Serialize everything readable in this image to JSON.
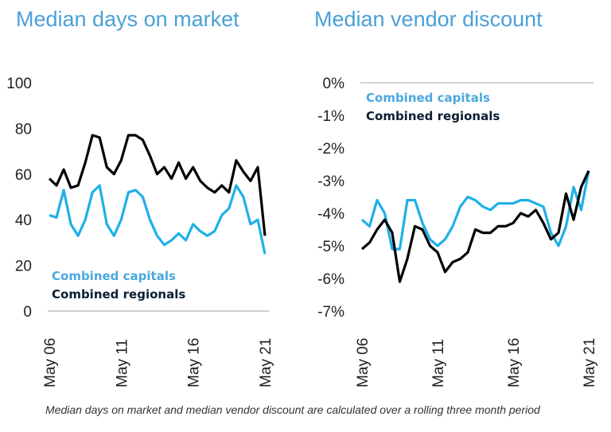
{
  "chart_data": [
    {
      "type": "line",
      "title": "Median days on market",
      "x": [
        "May 06",
        "Nov 06",
        "May 07",
        "Nov 07",
        "May 08",
        "Nov 08",
        "May 09",
        "Nov 09",
        "May 10",
        "Nov 10",
        "May 11",
        "Nov 11",
        "May 12",
        "Nov 12",
        "May 13",
        "Nov 13",
        "May 14",
        "Nov 14",
        "May 15",
        "Nov 15",
        "May 16",
        "Nov 16",
        "May 17",
        "Nov 17",
        "May 18",
        "Nov 18",
        "May 19",
        "Nov 19",
        "May 20",
        "Nov 20",
        "May 21"
      ],
      "xticks": [
        "May 06",
        "May 11",
        "May 16",
        "May 21"
      ],
      "yticks": [
        "0",
        "20",
        "40",
        "60",
        "80",
        "100"
      ],
      "ylim": [
        0,
        100
      ],
      "grid": false,
      "legend_placement": "bottom-left",
      "series": [
        {
          "name": "Combined capitals",
          "color": "#1fb0e8",
          "values": [
            42,
            41,
            53,
            38,
            33,
            40,
            52,
            55,
            38,
            33,
            40,
            52,
            53,
            50,
            40,
            33,
            29,
            31,
            34,
            31,
            38,
            35,
            33,
            35,
            42,
            45,
            55,
            50,
            38,
            40,
            25
          ]
        },
        {
          "name": "Combined regionals",
          "color": "#000000",
          "values": [
            58,
            55,
            62,
            54,
            55,
            65,
            77,
            76,
            63,
            60,
            66,
            77,
            77,
            75,
            68,
            60,
            63,
            58,
            65,
            58,
            63,
            57,
            54,
            52,
            55,
            52,
            66,
            61,
            57,
            63,
            33
          ]
        }
      ]
    },
    {
      "type": "line",
      "title": "Median vendor discount",
      "x": [
        "May 06",
        "Nov 06",
        "May 07",
        "Nov 07",
        "May 08",
        "Nov 08",
        "May 09",
        "Nov 09",
        "May 10",
        "Nov 10",
        "May 11",
        "Nov 11",
        "May 12",
        "Nov 12",
        "May 13",
        "Nov 13",
        "May 14",
        "Nov 14",
        "May 15",
        "Nov 15",
        "May 16",
        "Nov 16",
        "May 17",
        "Nov 17",
        "May 18",
        "Nov 18",
        "May 19",
        "Nov 19",
        "May 20",
        "Nov 20",
        "May 21"
      ],
      "xticks": [
        "May 06",
        "May 11",
        "May 16",
        "May 21"
      ],
      "yticks": [
        "0%",
        "-1%",
        "-2%",
        "-3%",
        "-4%",
        "-5%",
        "-6%",
        "-7%"
      ],
      "ylim": [
        -7,
        0
      ],
      "grid": false,
      "legend_placement": "top-left",
      "series": [
        {
          "name": "Combined capitals",
          "color": "#1fb0e8",
          "values": [
            -4.2,
            -4.4,
            -3.6,
            -4.0,
            -5.1,
            -5.1,
            -3.6,
            -3.6,
            -4.3,
            -4.8,
            -5.0,
            -4.8,
            -4.4,
            -3.8,
            -3.5,
            -3.6,
            -3.8,
            -3.9,
            -3.7,
            -3.7,
            -3.7,
            -3.6,
            -3.6,
            -3.7,
            -3.8,
            -4.6,
            -5.0,
            -4.4,
            -3.2,
            -3.9,
            -2.7
          ]
        },
        {
          "name": "Combined regionals",
          "color": "#000000",
          "values": [
            -5.1,
            -4.9,
            -4.5,
            -4.2,
            -4.6,
            -6.1,
            -5.4,
            -4.4,
            -4.5,
            -5.0,
            -5.2,
            -5.8,
            -5.5,
            -5.4,
            -5.2,
            -4.5,
            -4.6,
            -4.6,
            -4.4,
            -4.4,
            -4.3,
            -4.0,
            -4.1,
            -3.9,
            -4.3,
            -4.8,
            -4.6,
            -3.4,
            -4.2,
            -3.2,
            -2.7
          ]
        }
      ]
    }
  ],
  "footnote": "Median days on market and median vendor discount are calculated over a rolling three month period"
}
